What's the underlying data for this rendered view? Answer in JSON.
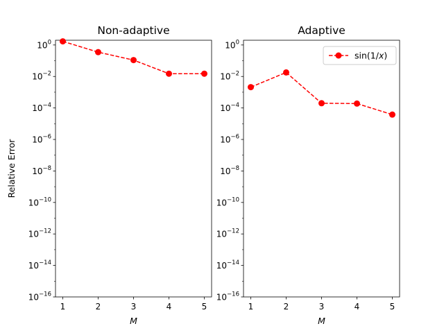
{
  "chart_data": [
    {
      "type": "line",
      "title": "Non-adaptive",
      "xlabel": "M",
      "ylabel": "Relative Error",
      "yscale": "log",
      "ylim": [
        1e-16,
        2
      ],
      "x": [
        1,
        2,
        3,
        4,
        5
      ],
      "xticks": [
        "1",
        "2",
        "3",
        "4",
        "5"
      ],
      "ytick_exponents": [
        "0",
        "−2",
        "−4",
        "−6",
        "−8",
        "−10",
        "−12",
        "−14",
        "−16"
      ],
      "series": [
        {
          "color": "#ff0000",
          "style": "dashed",
          "marker": "circle",
          "values": [
            1.7,
            0.35,
            0.11,
            0.015,
            0.015
          ]
        }
      ]
    },
    {
      "type": "line",
      "title": "Adaptive",
      "xlabel": "M",
      "ylabel": "",
      "yscale": "log",
      "ylim": [
        1e-16,
        2
      ],
      "x": [
        1,
        2,
        3,
        4,
        5
      ],
      "xticks": [
        "1",
        "2",
        "3",
        "4",
        "5"
      ],
      "ytick_exponents": [
        "0",
        "−2",
        "−4",
        "−6",
        "−8",
        "−10",
        "−12",
        "−14",
        "−16"
      ],
      "legend": "top-right",
      "series": [
        {
          "name": "sin(1/x)",
          "color": "#ff0000",
          "style": "dashed",
          "marker": "circle",
          "values": [
            0.0021,
            0.018,
            0.0002,
            0.00019,
            3.8e-05
          ]
        }
      ]
    }
  ]
}
